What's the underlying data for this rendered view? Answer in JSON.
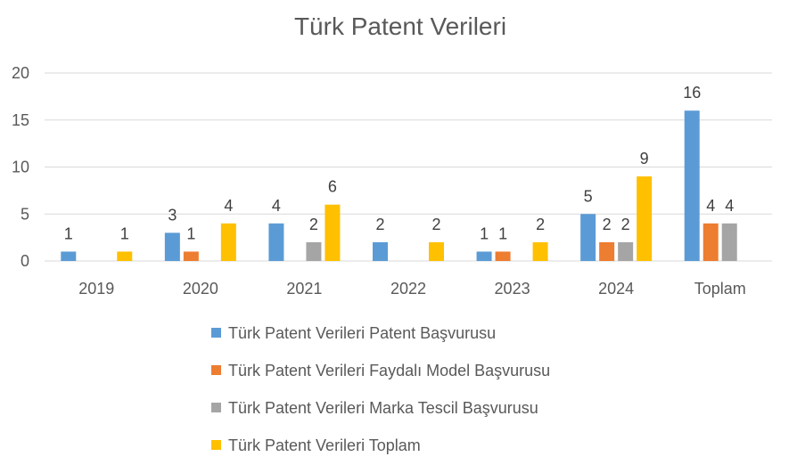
{
  "chart_data": {
    "type": "bar",
    "title": "Türk Patent Verileri",
    "xlabel": "",
    "ylabel": "",
    "ylim": [
      0,
      20
    ],
    "yticks": [
      0,
      5,
      10,
      15,
      20
    ],
    "grid": true,
    "legend_position": "bottom",
    "categories": [
      "2019",
      "2020",
      "2021",
      "2022",
      "2023",
      "2024",
      "Toplam"
    ],
    "series": [
      {
        "name": "Türk Patent Verileri Patent Başvurusu",
        "color": "#5B9BD5",
        "values": [
          1,
          3,
          4,
          2,
          1,
          5,
          16
        ]
      },
      {
        "name": "Türk Patent Verileri Faydalı Model Başvurusu",
        "color": "#ED7D31",
        "values": [
          null,
          1,
          null,
          null,
          1,
          2,
          4
        ]
      },
      {
        "name": "Türk Patent Verileri Marka Tescil Başvurusu",
        "color": "#A5A5A5",
        "values": [
          null,
          null,
          2,
          null,
          null,
          2,
          4
        ]
      },
      {
        "name": "Türk Patent Verileri Toplam",
        "color": "#FFC000",
        "values": [
          1,
          4,
          6,
          2,
          2,
          9,
          null
        ]
      }
    ]
  }
}
